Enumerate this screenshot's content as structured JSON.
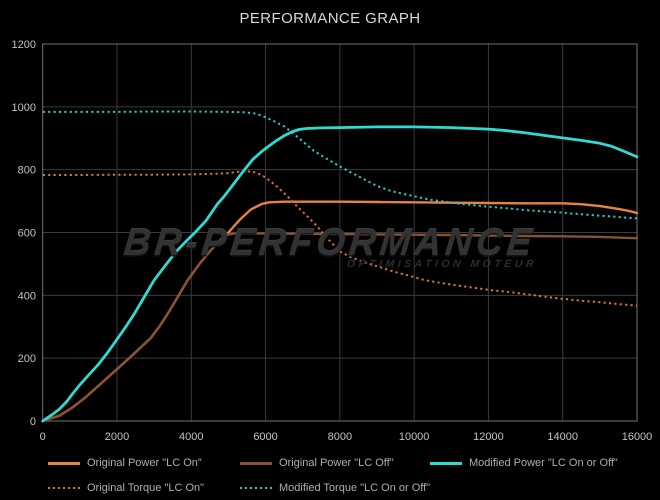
{
  "title": "PERFORMANCE GRAPH",
  "watermark": {
    "line1": "BR-PERFORMANCE",
    "line2": "OPTIMISATION MOTEUR"
  },
  "colors": {
    "background": "#000000",
    "grid": "#3b3b3b",
    "border": "#757575",
    "tick_label": "#c2c2c2",
    "title_text": "#d8d8d8",
    "legend_text": "#aeaeae",
    "watermark_text": "#323232"
  },
  "chart_data": {
    "type": "line",
    "title": "PERFORMANCE GRAPH",
    "xlabel": "",
    "ylabel": "",
    "xlim": [
      0,
      16000
    ],
    "ylim": [
      0,
      1200
    ],
    "x_ticks": [
      0,
      2000,
      4000,
      6000,
      8000,
      10000,
      12000,
      14000,
      16000
    ],
    "y_ticks": [
      0,
      200,
      400,
      600,
      800,
      1000,
      1200
    ],
    "grid": true,
    "legend_position": "bottom",
    "series": [
      {
        "name": "Original Power \"LC On\"",
        "color": "#e8823f",
        "style": "solid",
        "points": [
          [
            0,
            0
          ],
          [
            450,
            17
          ],
          [
            800,
            43
          ],
          [
            1150,
            75
          ],
          [
            1500,
            112
          ],
          [
            2000,
            165
          ],
          [
            2400,
            208
          ],
          [
            2900,
            263
          ],
          [
            3150,
            302
          ],
          [
            3400,
            348
          ],
          [
            3650,
            398
          ],
          [
            3900,
            448
          ],
          [
            4200,
            497
          ],
          [
            4500,
            540
          ],
          [
            4800,
            578
          ],
          [
            5000,
            600
          ],
          [
            5300,
            640
          ],
          [
            5600,
            673
          ],
          [
            5900,
            691
          ],
          [
            6100,
            696
          ],
          [
            6500,
            698
          ],
          [
            7000,
            698
          ],
          [
            8000,
            698
          ],
          [
            9000,
            697
          ],
          [
            10000,
            696
          ],
          [
            11000,
            695
          ],
          [
            12000,
            694
          ],
          [
            13000,
            693
          ],
          [
            14000,
            693
          ],
          [
            14500,
            690
          ],
          [
            15000,
            684
          ],
          [
            15500,
            675
          ],
          [
            15800,
            668
          ],
          [
            16000,
            662
          ]
        ]
      },
      {
        "name": "Original Power \"LC Off\"",
        "color": "#8a5230",
        "style": "solid",
        "points": [
          [
            0,
            0
          ],
          [
            450,
            17
          ],
          [
            800,
            43
          ],
          [
            1150,
            75
          ],
          [
            1500,
            112
          ],
          [
            2000,
            165
          ],
          [
            2400,
            208
          ],
          [
            2900,
            263
          ],
          [
            3150,
            302
          ],
          [
            3400,
            348
          ],
          [
            3650,
            398
          ],
          [
            3900,
            448
          ],
          [
            4200,
            497
          ],
          [
            4500,
            540
          ],
          [
            4800,
            578
          ],
          [
            4950,
            592
          ],
          [
            5150,
            597
          ],
          [
            6000,
            597
          ],
          [
            7000,
            596
          ],
          [
            8000,
            595
          ],
          [
            9000,
            594
          ],
          [
            10000,
            593
          ],
          [
            11000,
            592
          ],
          [
            12000,
            590
          ],
          [
            13000,
            589
          ],
          [
            14000,
            588
          ],
          [
            15000,
            586
          ],
          [
            16000,
            582
          ]
        ]
      },
      {
        "name": "Modified Power \"LC On or Off\"",
        "color": "#2edbd3",
        "style": "solid",
        "points": [
          [
            0,
            0
          ],
          [
            250,
            20
          ],
          [
            450,
            38
          ],
          [
            650,
            62
          ],
          [
            800,
            86
          ],
          [
            1000,
            115
          ],
          [
            1250,
            148
          ],
          [
            1500,
            180
          ],
          [
            1750,
            218
          ],
          [
            2000,
            260
          ],
          [
            2250,
            302
          ],
          [
            2500,
            348
          ],
          [
            2750,
            398
          ],
          [
            3000,
            448
          ],
          [
            3300,
            495
          ],
          [
            3600,
            540
          ],
          [
            3900,
            577
          ],
          [
            4100,
            600
          ],
          [
            4400,
            638
          ],
          [
            4700,
            690
          ],
          [
            4900,
            717
          ],
          [
            5100,
            748
          ],
          [
            5400,
            795
          ],
          [
            5650,
            832
          ],
          [
            5900,
            858
          ],
          [
            6100,
            876
          ],
          [
            6300,
            893
          ],
          [
            6500,
            908
          ],
          [
            6700,
            920
          ],
          [
            6900,
            928
          ],
          [
            7100,
            931
          ],
          [
            7500,
            933
          ],
          [
            8000,
            934
          ],
          [
            9000,
            936
          ],
          [
            10000,
            936
          ],
          [
            11000,
            934
          ],
          [
            12000,
            929
          ],
          [
            12500,
            924
          ],
          [
            13000,
            917
          ],
          [
            13500,
            909
          ],
          [
            14000,
            901
          ],
          [
            14500,
            893
          ],
          [
            15000,
            884
          ],
          [
            15300,
            875
          ],
          [
            15600,
            861
          ],
          [
            16000,
            841
          ]
        ]
      },
      {
        "name": "Original Torque \"LC On\"",
        "color": "#d9733a",
        "style": "dotted",
        "points": [
          [
            0,
            783
          ],
          [
            1000,
            783
          ],
          [
            2000,
            784
          ],
          [
            3000,
            784
          ],
          [
            4000,
            785
          ],
          [
            4600,
            787
          ],
          [
            5000,
            789
          ],
          [
            5300,
            794
          ],
          [
            5500,
            795
          ],
          [
            5700,
            792
          ],
          [
            5900,
            783
          ],
          [
            6100,
            766
          ],
          [
            6300,
            747
          ],
          [
            6600,
            714
          ],
          [
            6900,
            677
          ],
          [
            7200,
            643
          ],
          [
            7400,
            618
          ],
          [
            7700,
            577
          ],
          [
            8000,
            540
          ],
          [
            8300,
            521
          ],
          [
            8700,
            504
          ],
          [
            9100,
            489
          ],
          [
            9500,
            474
          ],
          [
            10000,
            458
          ],
          [
            10300,
            448
          ],
          [
            10800,
            438
          ],
          [
            11300,
            429
          ],
          [
            12100,
            416
          ],
          [
            12600,
            410
          ],
          [
            13000,
            404
          ],
          [
            13900,
            390
          ],
          [
            14500,
            383
          ],
          [
            15000,
            378
          ],
          [
            15500,
            372
          ],
          [
            16000,
            367
          ]
        ]
      },
      {
        "name": "Modified Torque \"LC On or Off\"",
        "color": "#2bc7c1",
        "style": "dotted",
        "points": [
          [
            0,
            984
          ],
          [
            1000,
            984
          ],
          [
            2000,
            984
          ],
          [
            3000,
            985
          ],
          [
            4000,
            985
          ],
          [
            5000,
            984
          ],
          [
            5400,
            983
          ],
          [
            5700,
            979
          ],
          [
            5900,
            972
          ],
          [
            6200,
            956
          ],
          [
            6500,
            938
          ],
          [
            6750,
            915
          ],
          [
            7000,
            890
          ],
          [
            7300,
            860
          ],
          [
            7600,
            838
          ],
          [
            8000,
            810
          ],
          [
            8500,
            779
          ],
          [
            9000,
            748
          ],
          [
            9400,
            731
          ],
          [
            9900,
            718
          ],
          [
            10400,
            705
          ],
          [
            11200,
            692
          ],
          [
            12000,
            682
          ],
          [
            12600,
            676
          ],
          [
            13000,
            671
          ],
          [
            13900,
            664
          ],
          [
            14500,
            658
          ],
          [
            15200,
            652
          ],
          [
            16000,
            645
          ]
        ]
      }
    ]
  }
}
